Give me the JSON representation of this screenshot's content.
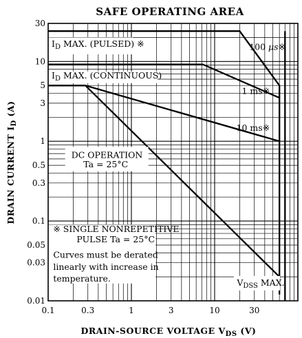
{
  "chart_data": {
    "type": "line",
    "title": "SAFE OPERATING AREA",
    "xlabel": "DRAIN-SOURCE VOLTAGE  V",
    "xlabel_sub": "DS",
    "xlabel_unit": "  (V)",
    "ylabel": "DRAIN CURRENT  I",
    "ylabel_sub": "D",
    "ylabel_unit": "  (A)",
    "xscale": "log",
    "yscale": "log",
    "xlim": [
      0.1,
      100
    ],
    "ylim": [
      0.01,
      30
    ],
    "grid": true,
    "x_tick_labels": [
      {
        "v": 0.1,
        "t": "0.1"
      },
      {
        "v": 0.3,
        "t": "0.3"
      },
      {
        "v": 1,
        "t": "1"
      },
      {
        "v": 3,
        "t": "3"
      },
      {
        "v": 10,
        "t": "10"
      },
      {
        "v": 30,
        "t": "30"
      }
    ],
    "y_tick_labels": [
      {
        "v": 30,
        "t": "30"
      },
      {
        "v": 10,
        "t": "10"
      },
      {
        "v": 5,
        "t": "5"
      },
      {
        "v": 3,
        "t": "3"
      },
      {
        "v": 1,
        "t": "1"
      },
      {
        "v": 0.5,
        "t": "0.5"
      },
      {
        "v": 0.3,
        "t": "0.3"
      },
      {
        "v": 0.1,
        "t": "0.1"
      },
      {
        "v": 0.05,
        "t": "0.05"
      },
      {
        "v": 0.03,
        "t": "0.03"
      },
      {
        "v": 0.01,
        "t": "0.01"
      }
    ],
    "series": [
      {
        "label_parts": [
          "100 ",
          "μ",
          "s",
          "※"
        ],
        "values": [
          [
            0.1,
            24
          ],
          [
            20,
            24
          ],
          [
            60,
            5
          ],
          [
            60,
            0.012
          ]
        ]
      },
      {
        "label_parts": [
          "1 ms",
          "※"
        ],
        "values": [
          [
            0.1,
            9.2
          ],
          [
            7.2,
            9.2
          ],
          [
            60,
            3.5
          ]
        ]
      },
      {
        "label_parts": [
          "10 ms",
          "※"
        ],
        "values": [
          [
            0.1,
            5
          ],
          [
            0.28,
            5
          ],
          [
            60,
            1
          ]
        ]
      },
      {
        "label_parts": [
          "DC OPERATION"
        ],
        "values": [
          [
            0.1,
            5
          ],
          [
            0.28,
            5
          ],
          [
            60,
            0.02
          ]
        ]
      },
      {
        "label_parts": [
          "V",
          "DSS",
          " MAX."
        ],
        "values": [
          [
            70,
            24
          ],
          [
            70,
            0.01
          ]
        ]
      }
    ],
    "annotations": {
      "id_pulsed": "I",
      "id_pulsed_sub": "D",
      "id_pulsed_rest": " MAX. (PULSED) ※",
      "id_cont": "I",
      "id_cont_sub": "D",
      "id_cont_rest": " MAX. (CONTINUOUS)",
      "dc_ta": "Ta = 25°C",
      "note_lines": [
        "※ SINGLE NONREPETITIVE",
        "PULSE    Ta = 25°C",
        "Curves must be derated",
        "linearly with increase in",
        "temperature."
      ]
    }
  }
}
